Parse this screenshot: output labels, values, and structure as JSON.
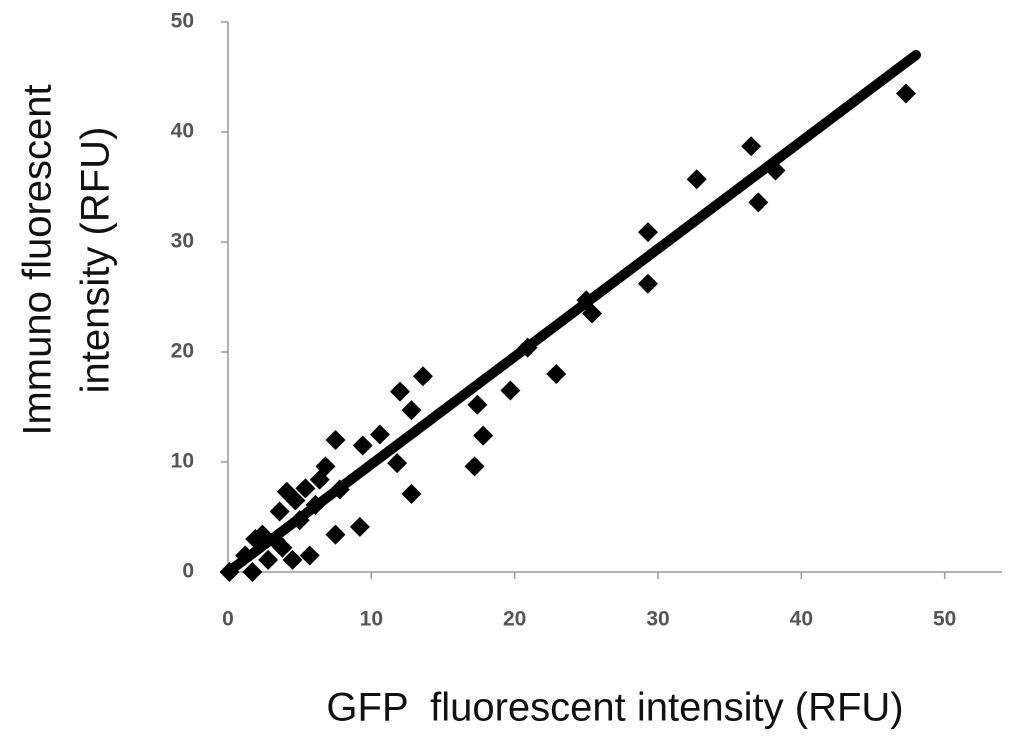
{
  "chart_data": {
    "type": "scatter",
    "xlabel": "GFP  fluorescent intensity (RFU)",
    "ylabel": [
      "Immuno fluorescent",
      "intensity (RFU)"
    ],
    "xlim": [
      0,
      54
    ],
    "ylim": [
      0,
      50
    ],
    "xticks": [
      0,
      10,
      20,
      30,
      40,
      50
    ],
    "yticks": [
      0,
      10,
      20,
      30,
      40,
      50
    ],
    "color": "#000000",
    "x": [
      47.3,
      36.5,
      37.0,
      38.2,
      32.7,
      29.3,
      29.3,
      25.4,
      25.0,
      22.9,
      20.9,
      19.7,
      17.4,
      17.8,
      17.2,
      13.6,
      12.0,
      12.8,
      12.8,
      10.6,
      11.8,
      9.4,
      9.2,
      7.5,
      7.5,
      6.8,
      6.4,
      5.4,
      4.7,
      4.1,
      3.6,
      5.7,
      4.5,
      3.3,
      2.4,
      1.9,
      1.2,
      1.7,
      0.1,
      2.8,
      3.8,
      5.0,
      6.1,
      7.8
    ],
    "values": [
      43.5,
      38.7,
      33.6,
      36.5,
      35.7,
      30.9,
      26.2,
      23.5,
      24.7,
      18.0,
      20.4,
      16.5,
      15.2,
      12.4,
      9.6,
      17.8,
      16.4,
      14.7,
      7.1,
      12.5,
      9.9,
      11.5,
      4.1,
      12.0,
      3.4,
      9.6,
      8.4,
      7.6,
      6.5,
      7.3,
      5.5,
      1.5,
      1.1,
      2.9,
      3.4,
      3.0,
      1.5,
      0,
      0,
      1.1,
      2.2,
      4.7,
      6.1,
      7.5
    ],
    "trendline": {
      "x": [
        0,
        48
      ],
      "values": [
        0,
        47
      ]
    }
  }
}
